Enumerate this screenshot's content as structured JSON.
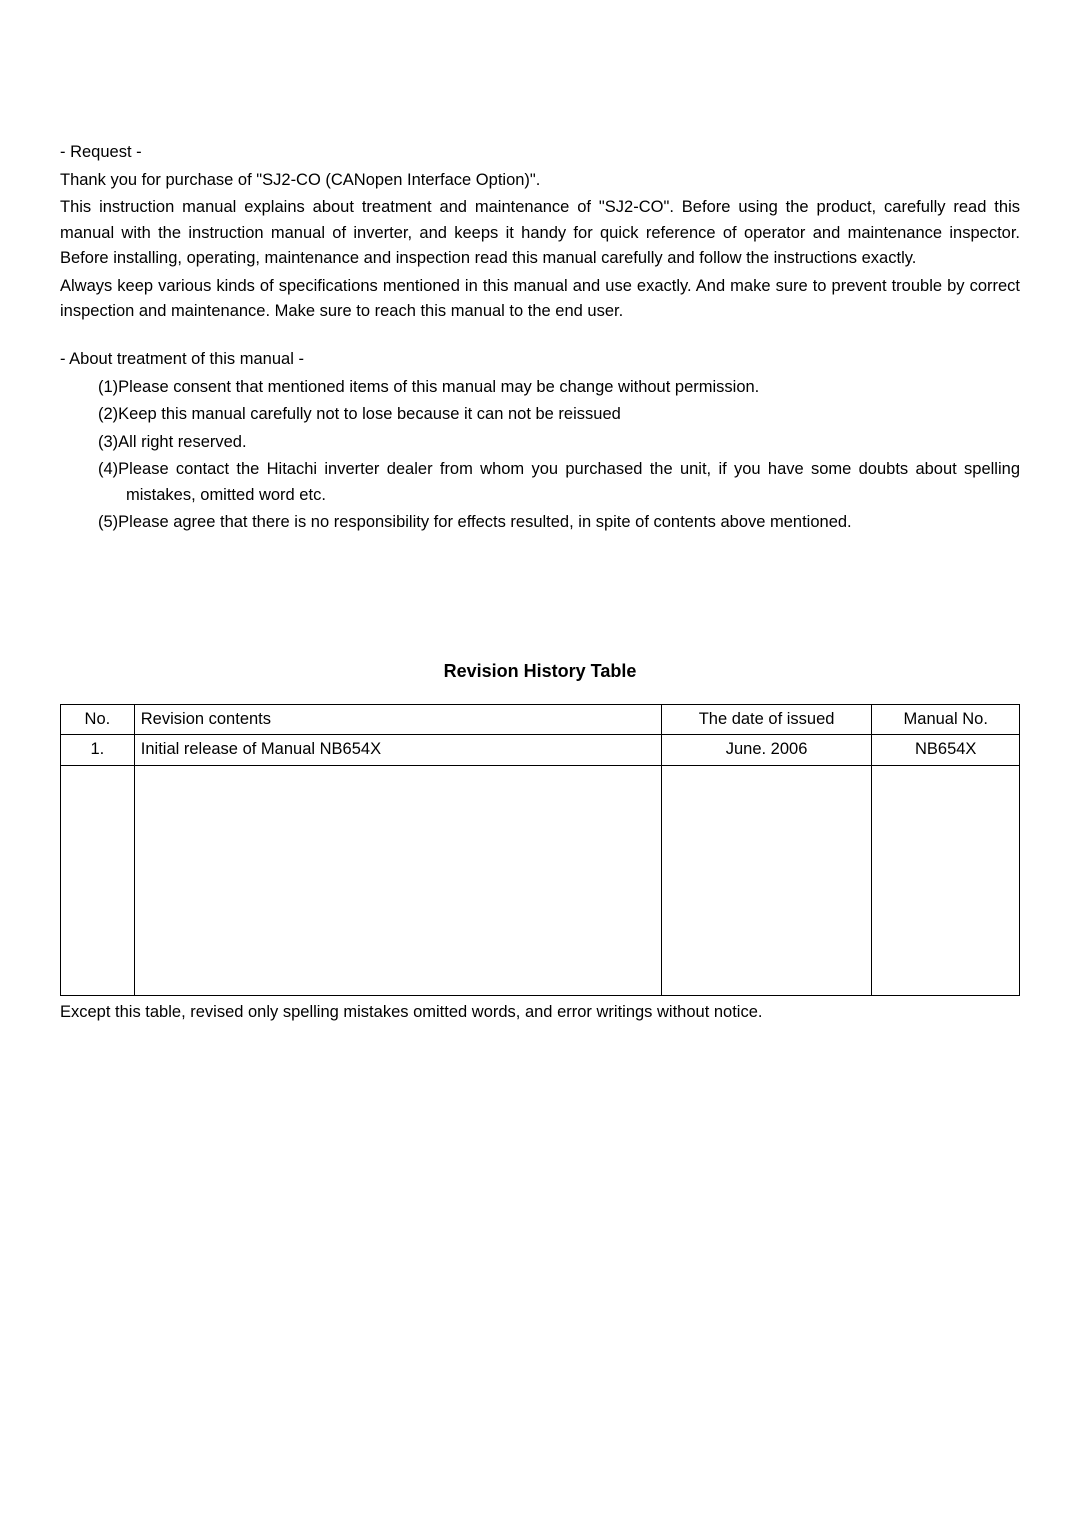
{
  "request_title": "- Request -",
  "intro_line1": "Thank you for purchase of \"SJ2-CO (CANopen Interface Option)\".",
  "intro_para1": "This instruction manual explains about treatment and maintenance of \"SJ2-CO\". Before using the product, carefully read this manual with the instruction manual of inverter, and keeps it handy for quick reference of operator and maintenance inspector. Before installing, operating, maintenance and inspection read this manual carefully and follow the instructions exactly.",
  "intro_para2": "Always keep various kinds of specifications mentioned in this manual and use exactly. And make sure to prevent trouble by correct inspection and maintenance. Make sure to reach this manual to the end user.",
  "about_title": "- About treatment of this manual -",
  "list_items": {
    "item1": "(1)Please consent that mentioned items of this manual may be change without permission.",
    "item2": "(2)Keep this manual carefully not to lose because it can not be reissued",
    "item3": "(3)All right reserved.",
    "item4": "(4)Please contact the Hitachi inverter dealer from whom you purchased the unit, if you have some doubts about spelling mistakes, omitted word etc.",
    "item5": "(5)Please agree that there is no responsibility for effects resulted, in spite of contents above mentioned."
  },
  "table_title": "Revision History Table",
  "table": {
    "headers": {
      "no": "No.",
      "contents": "Revision contents",
      "date": "The date of issued",
      "manual": "Manual No."
    },
    "rows": [
      {
        "no": "1.",
        "contents": "Initial release of Manual NB654X",
        "date": "June. 2006",
        "manual": "NB654X"
      }
    ]
  },
  "footnote": "Except this table, revised only spelling mistakes omitted words, and error writings without notice."
}
